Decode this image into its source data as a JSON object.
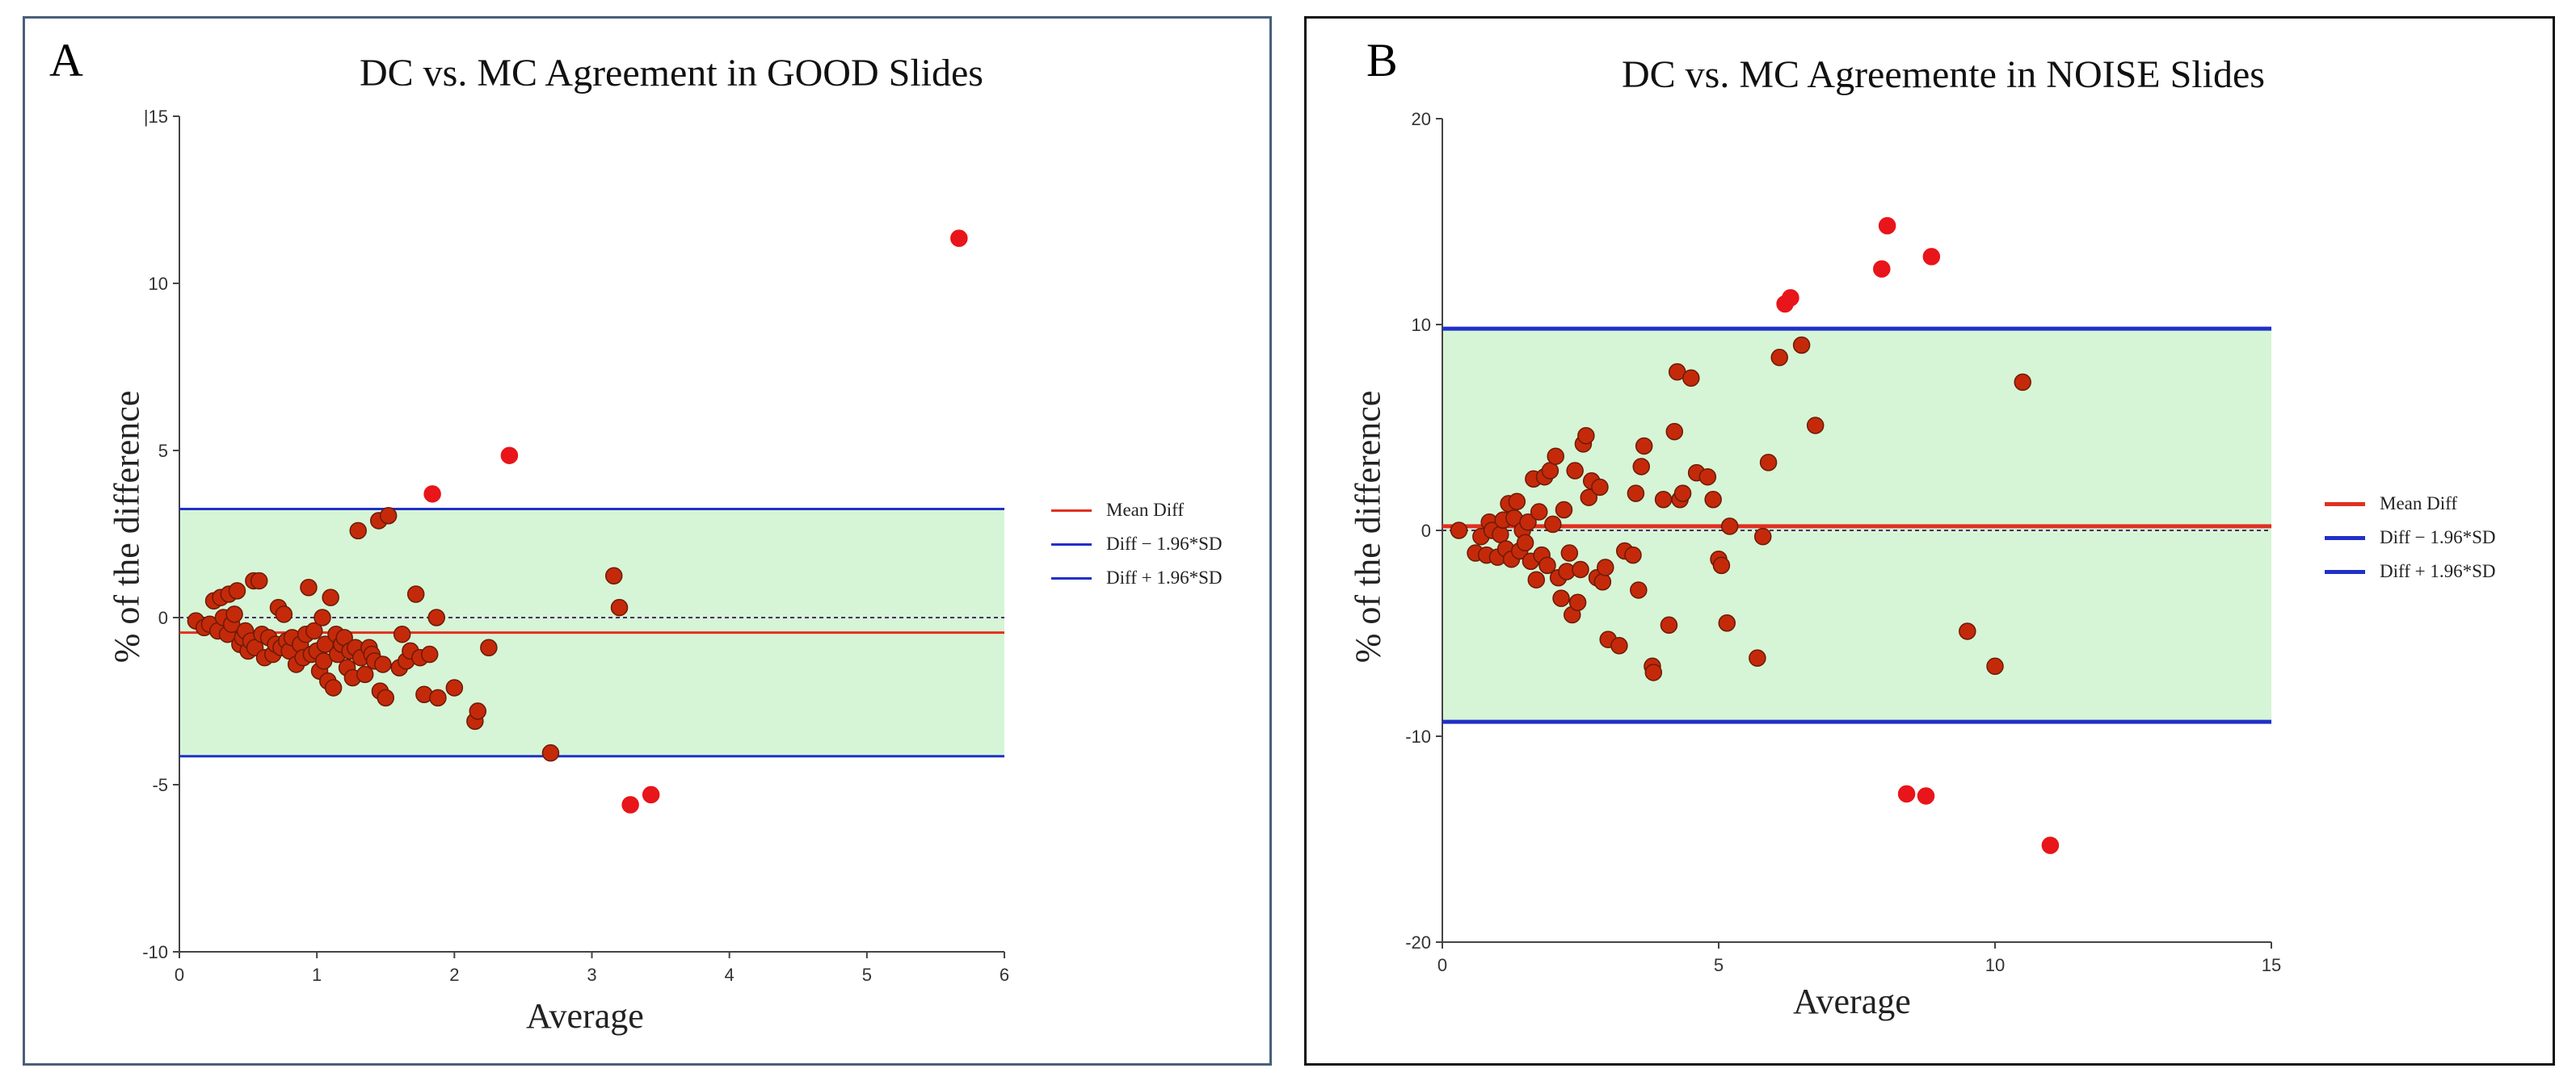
{
  "chart_data": [
    {
      "panel_label": "A",
      "type": "scatter",
      "title": "DC vs. MC Agreement in GOOD Slides",
      "xlabel": "Average",
      "ylabel": "% of the difference",
      "xlim": [
        0,
        6
      ],
      "ylim": [
        -10,
        15
      ],
      "x_ticks": [
        "0",
        "1",
        "2",
        "3",
        "4",
        "5",
        "6"
      ],
      "y_ticks": [
        "|15",
        "10",
        "5",
        "0",
        "-5",
        "-10"
      ],
      "mean_diff": -0.45,
      "lower_loa": -4.15,
      "upper_loa": 3.25,
      "legend": [
        "Mean Diff",
        "Diff − 1.96*SD",
        "Diff + 1.96*SD"
      ],
      "colors": {
        "mean": "#e03020",
        "loa": "#2030c8",
        "band": "#d6f5d6",
        "point": "#c42a0a",
        "point_bright": "#e8151a"
      },
      "points": [
        [
          0.12,
          -0.1
        ],
        [
          0.18,
          -0.3
        ],
        [
          0.22,
          -0.2
        ],
        [
          0.25,
          0.5
        ],
        [
          0.28,
          -0.4
        ],
        [
          0.3,
          0.6
        ],
        [
          0.32,
          0.0
        ],
        [
          0.35,
          -0.5
        ],
        [
          0.36,
          0.7
        ],
        [
          0.38,
          -0.2
        ],
        [
          0.4,
          0.1
        ],
        [
          0.42,
          0.8
        ],
        [
          0.44,
          -0.8
        ],
        [
          0.46,
          -0.6
        ],
        [
          0.48,
          -0.4
        ],
        [
          0.5,
          -1.0
        ],
        [
          0.52,
          -0.7
        ],
        [
          0.54,
          1.1
        ],
        [
          0.55,
          -0.9
        ],
        [
          0.58,
          1.1
        ],
        [
          0.6,
          -0.5
        ],
        [
          0.62,
          -1.2
        ],
        [
          0.65,
          -0.6
        ],
        [
          0.68,
          -1.1
        ],
        [
          0.7,
          -0.8
        ],
        [
          0.72,
          0.3
        ],
        [
          0.74,
          -0.9
        ],
        [
          0.76,
          0.1
        ],
        [
          0.78,
          -0.7
        ],
        [
          0.8,
          -1.0
        ],
        [
          0.82,
          -0.6
        ],
        [
          0.85,
          -1.4
        ],
        [
          0.88,
          -0.8
        ],
        [
          0.9,
          -1.2
        ],
        [
          0.92,
          -0.5
        ],
        [
          0.94,
          0.9
        ],
        [
          0.96,
          -1.1
        ],
        [
          0.98,
          -0.4
        ],
        [
          1.0,
          -1.0
        ],
        [
          1.02,
          -1.6
        ],
        [
          1.04,
          0.0
        ],
        [
          1.05,
          -1.3
        ],
        [
          1.06,
          -0.8
        ],
        [
          1.08,
          -1.9
        ],
        [
          1.1,
          0.6
        ],
        [
          1.12,
          -2.1
        ],
        [
          1.14,
          -0.5
        ],
        [
          1.15,
          -1.1
        ],
        [
          1.18,
          -0.8
        ],
        [
          1.2,
          -0.6
        ],
        [
          1.22,
          -1.5
        ],
        [
          1.24,
          -1.0
        ],
        [
          1.26,
          -1.8
        ],
        [
          1.28,
          -0.9
        ],
        [
          1.3,
          2.6
        ],
        [
          1.32,
          -1.2
        ],
        [
          1.35,
          -1.7
        ],
        [
          1.38,
          -0.9
        ],
        [
          1.4,
          -1.1
        ],
        [
          1.42,
          -1.3
        ],
        [
          1.45,
          2.9
        ],
        [
          1.46,
          -2.2
        ],
        [
          1.48,
          -1.4
        ],
        [
          1.5,
          -2.4
        ],
        [
          1.52,
          3.05
        ],
        [
          1.6,
          -1.5
        ],
        [
          1.62,
          -0.5
        ],
        [
          1.65,
          -1.3
        ],
        [
          1.68,
          -1.0
        ],
        [
          1.72,
          0.7
        ],
        [
          1.75,
          -1.2
        ],
        [
          1.78,
          -2.3
        ],
        [
          1.82,
          -1.1
        ],
        [
          1.84,
          3.7
        ],
        [
          1.87,
          0.0
        ],
        [
          1.88,
          -2.4
        ],
        [
          2.0,
          -2.1
        ],
        [
          2.15,
          -3.1
        ],
        [
          2.17,
          -2.8
        ],
        [
          2.25,
          -0.9
        ],
        [
          2.4,
          4.85
        ],
        [
          2.7,
          -4.05
        ],
        [
          3.16,
          1.25
        ],
        [
          3.2,
          0.3
        ],
        [
          3.28,
          -5.6
        ],
        [
          3.43,
          -5.3
        ],
        [
          5.67,
          11.35
        ]
      ],
      "bright_points": [
        [
          1.84,
          3.7
        ],
        [
          2.4,
          4.85
        ],
        [
          3.28,
          -5.6
        ],
        [
          3.43,
          -5.3
        ],
        [
          5.67,
          11.35
        ]
      ]
    },
    {
      "panel_label": "B",
      "type": "scatter",
      "title": "DC vs. MC Agreemente in NOISE Slides",
      "xlabel": "Average",
      "ylabel": "% of the difference",
      "xlim": [
        0,
        15
      ],
      "ylim": [
        -20,
        20
      ],
      "x_ticks": [
        "0",
        "5",
        "10",
        "15"
      ],
      "y_ticks": [
        "20",
        "10",
        "0",
        "-10",
        "-20"
      ],
      "mean_diff": 0.2,
      "lower_loa": -9.3,
      "upper_loa": 9.8,
      "legend": [
        "Mean Diff",
        "Diff − 1.96*SD",
        "Diff + 1.96*SD"
      ],
      "colors": {
        "mean": "#e03020",
        "loa": "#2030c8",
        "band": "#d6f5d6",
        "point": "#c42a0a",
        "point_bright": "#e8151a"
      },
      "points": [
        [
          0.3,
          0.0
        ],
        [
          0.6,
          -1.1
        ],
        [
          0.7,
          -0.3
        ],
        [
          0.8,
          -1.2
        ],
        [
          0.85,
          0.4
        ],
        [
          0.9,
          0.0
        ],
        [
          1.0,
          -1.3
        ],
        [
          1.05,
          -0.2
        ],
        [
          1.1,
          0.5
        ],
        [
          1.15,
          -0.9
        ],
        [
          1.2,
          1.3
        ],
        [
          1.25,
          -1.4
        ],
        [
          1.3,
          0.6
        ],
        [
          1.35,
          1.4
        ],
        [
          1.4,
          -1.0
        ],
        [
          1.45,
          0.0
        ],
        [
          1.5,
          -0.6
        ],
        [
          1.55,
          0.4
        ],
        [
          1.6,
          -1.5
        ],
        [
          1.65,
          2.5
        ],
        [
          1.7,
          -2.4
        ],
        [
          1.75,
          0.9
        ],
        [
          1.8,
          -1.2
        ],
        [
          1.85,
          2.6
        ],
        [
          1.9,
          -1.7
        ],
        [
          1.95,
          2.9
        ],
        [
          2.0,
          0.3
        ],
        [
          2.05,
          3.6
        ],
        [
          2.1,
          -2.3
        ],
        [
          2.15,
          -3.3
        ],
        [
          2.2,
          1.0
        ],
        [
          2.25,
          -2.0
        ],
        [
          2.3,
          -1.1
        ],
        [
          2.35,
          -4.1
        ],
        [
          2.4,
          2.9
        ],
        [
          2.45,
          -3.5
        ],
        [
          2.5,
          -1.9
        ],
        [
          2.55,
          4.2
        ],
        [
          2.6,
          4.6
        ],
        [
          2.65,
          1.6
        ],
        [
          2.7,
          2.4
        ],
        [
          2.8,
          -2.3
        ],
        [
          2.85,
          2.1
        ],
        [
          2.9,
          -2.5
        ],
        [
          2.95,
          -1.8
        ],
        [
          3.0,
          -5.3
        ],
        [
          3.2,
          -5.6
        ],
        [
          3.3,
          -1.0
        ],
        [
          3.45,
          -1.2
        ],
        [
          3.5,
          1.8
        ],
        [
          3.55,
          -2.9
        ],
        [
          3.6,
          3.1
        ],
        [
          3.65,
          4.1
        ],
        [
          3.8,
          -6.6
        ],
        [
          3.82,
          -6.9
        ],
        [
          4.0,
          1.5
        ],
        [
          4.1,
          -4.6
        ],
        [
          4.2,
          4.8
        ],
        [
          4.25,
          7.7
        ],
        [
          4.3,
          1.5
        ],
        [
          4.35,
          1.8
        ],
        [
          4.5,
          7.4
        ],
        [
          4.6,
          2.8
        ],
        [
          4.8,
          2.6
        ],
        [
          4.9,
          1.5
        ],
        [
          5.0,
          -1.4
        ],
        [
          5.05,
          -1.7
        ],
        [
          5.15,
          -4.5
        ],
        [
          5.2,
          0.2
        ],
        [
          5.7,
          -6.2
        ],
        [
          5.8,
          -0.3
        ],
        [
          5.9,
          3.3
        ],
        [
          6.1,
          8.4
        ],
        [
          6.2,
          11.0
        ],
        [
          6.3,
          11.3
        ],
        [
          6.5,
          9.0
        ],
        [
          6.75,
          5.1
        ],
        [
          7.95,
          12.7
        ],
        [
          8.05,
          14.8
        ],
        [
          8.4,
          -12.8
        ],
        [
          8.75,
          -12.9
        ],
        [
          8.85,
          13.3
        ],
        [
          9.5,
          -4.9
        ],
        [
          10.0,
          -6.6
        ],
        [
          10.5,
          7.2
        ],
        [
          11.0,
          -15.3
        ]
      ],
      "bright_points": [
        [
          6.2,
          11.0
        ],
        [
          6.3,
          11.3
        ],
        [
          7.95,
          12.7
        ],
        [
          8.05,
          14.8
        ],
        [
          8.4,
          -12.8
        ],
        [
          8.75,
          -12.9
        ],
        [
          8.85,
          13.3
        ],
        [
          11.0,
          -15.3
        ]
      ]
    }
  ]
}
